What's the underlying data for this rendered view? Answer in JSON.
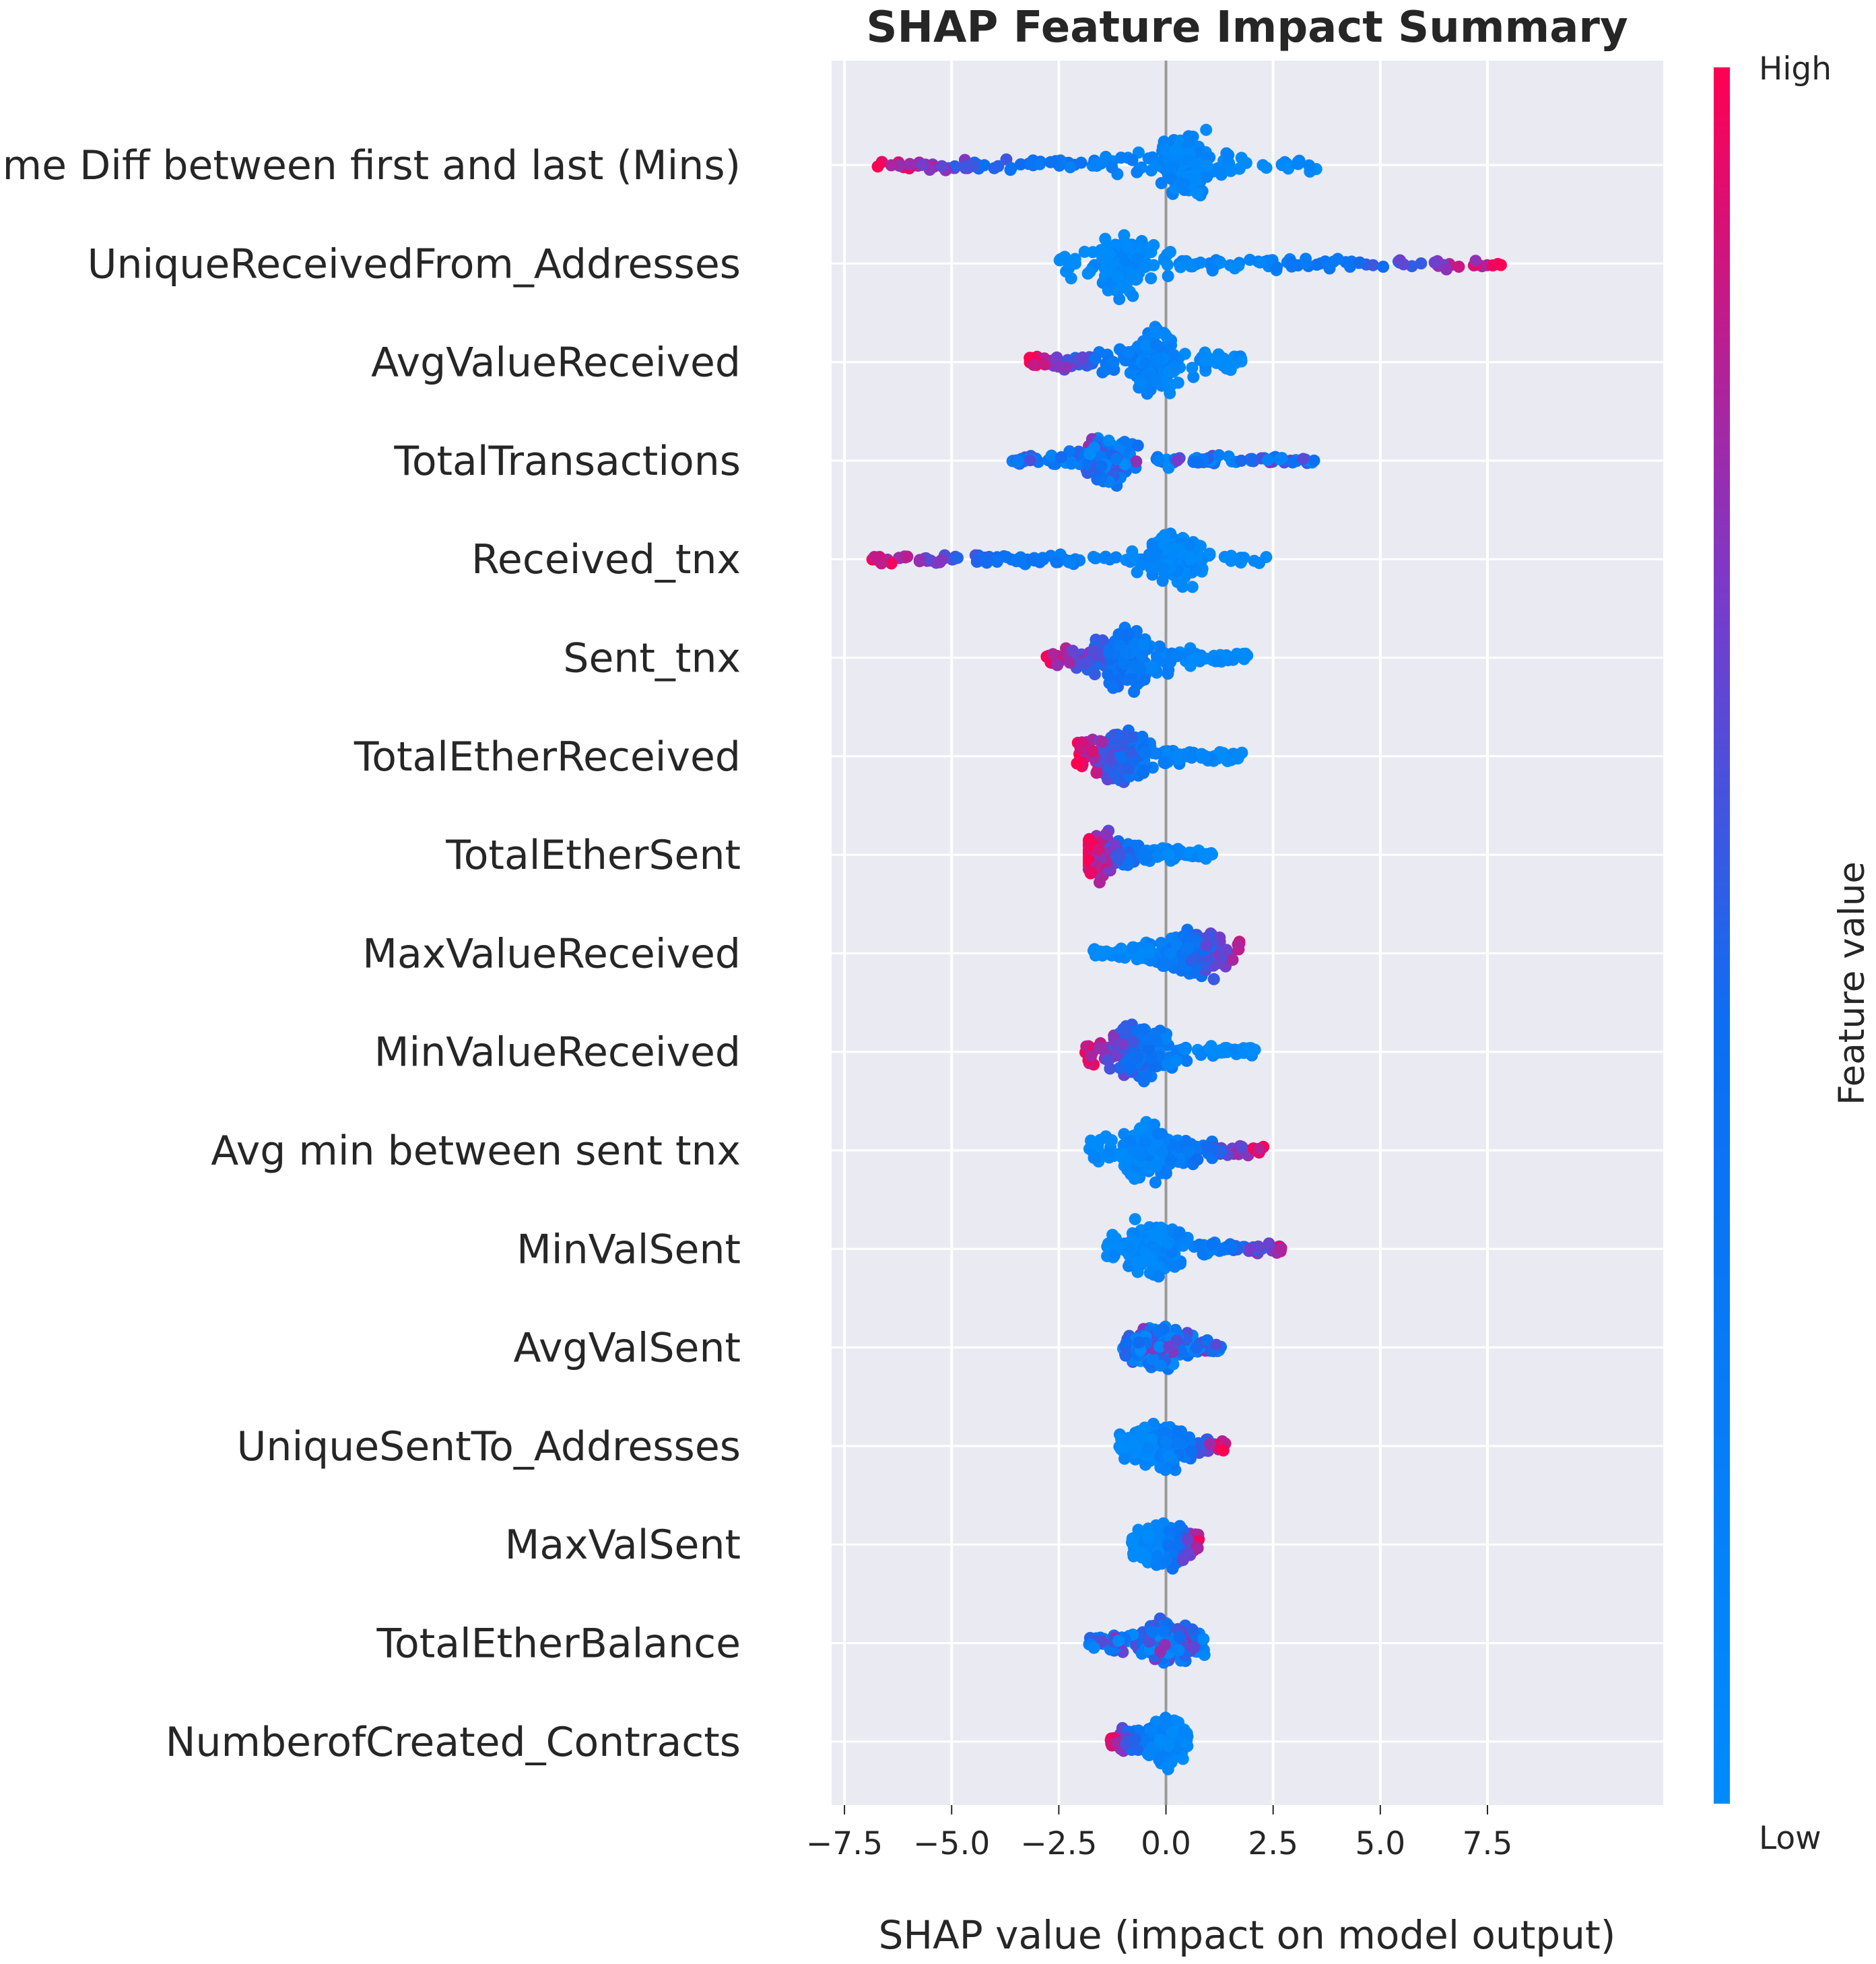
{
  "chart_data": {
    "type": "scatter",
    "subtype": "shap-beeswarm",
    "title": "SHAP Feature Impact Summary",
    "xlabel": "SHAP value (impact on model output)",
    "xlim": [
      -7.8,
      11.6
    ],
    "xticks": [
      -7.5,
      -5.0,
      -2.5,
      0.0,
      2.5,
      5.0,
      7.5
    ],
    "xtick_labels": [
      "−7.5",
      "−5.0",
      "−2.5",
      "0.0",
      "2.5",
      "5.0",
      "7.5"
    ],
    "colorbar": {
      "label": "Feature value",
      "high_label": "High",
      "low_label": "Low",
      "low_color": "#008bfb",
      "high_color": "#ff0052"
    },
    "features": [
      {
        "name": "Time Diff between first and last (Mins)",
        "min": -6.8,
        "max": 3.6,
        "center": 0.4,
        "high_side": "negative",
        "spread": 0.95
      },
      {
        "name": "UniqueReceivedFrom_Addresses",
        "min": -2.5,
        "max": 7.9,
        "center": -1.0,
        "high_side": "positive",
        "spread": 0.9
      },
      {
        "name": "AvgValueReceived",
        "min": -3.2,
        "max": 1.8,
        "center": -0.2,
        "high_side": "negative",
        "spread": 0.9
      },
      {
        "name": "TotalTransactions",
        "min": -3.6,
        "max": 3.6,
        "center": -1.4,
        "high_side": "mixed",
        "spread": 0.7
      },
      {
        "name": "Received_tnx",
        "min": -6.9,
        "max": 2.4,
        "center": 0.2,
        "high_side": "negative",
        "spread": 0.75
      },
      {
        "name": "Sent_tnx",
        "min": -2.8,
        "max": 2.0,
        "center": -0.9,
        "high_side": "negative",
        "spread": 0.85
      },
      {
        "name": "TotalEtherReceived",
        "min": -2.1,
        "max": 1.8,
        "center": -1.0,
        "high_side": "negative",
        "spread": 0.8
      },
      {
        "name": "TotalEtherSent",
        "min": -1.8,
        "max": 1.1,
        "center": -1.6,
        "high_side": "negative",
        "spread": 0.6
      },
      {
        "name": "MaxValueReceived",
        "min": -1.7,
        "max": 1.8,
        "center": 0.7,
        "high_side": "positive",
        "spread": 0.7
      },
      {
        "name": "MinValueReceived",
        "min": -1.9,
        "max": 2.1,
        "center": -0.7,
        "high_side": "negative",
        "spread": 0.8
      },
      {
        "name": "Avg min between sent tnx",
        "min": -1.8,
        "max": 2.3,
        "center": -0.4,
        "high_side": "positive",
        "spread": 0.8
      },
      {
        "name": "MinValSent",
        "min": -1.4,
        "max": 2.9,
        "center": -0.3,
        "high_side": "positive",
        "spread": 0.8
      },
      {
        "name": "AvgValSent",
        "min": -1.0,
        "max": 1.3,
        "center": -0.2,
        "high_side": "mixed",
        "spread": 0.6
      },
      {
        "name": "UniqueSentTo_Addresses",
        "min": -1.1,
        "max": 1.4,
        "center": -0.2,
        "high_side": "positive",
        "spread": 0.65
      },
      {
        "name": "MaxValSent",
        "min": -0.8,
        "max": 0.8,
        "center": 0.0,
        "high_side": "positive",
        "spread": 0.6
      },
      {
        "name": "TotalEtherBalance",
        "min": -1.8,
        "max": 0.9,
        "center": 0.0,
        "high_side": "mixed",
        "spread": 0.6
      },
      {
        "name": "NumberofCreated_Contracts",
        "min": -1.3,
        "max": 0.5,
        "center": 0.0,
        "high_side": "negative",
        "spread": 0.6
      }
    ]
  }
}
